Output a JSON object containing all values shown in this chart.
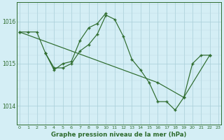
{
  "title": "Graphe pression niveau de la mer (hPa)",
  "bg_color": "#d4eef5",
  "grid_color_major": "#a8cdd8",
  "grid_color_minor": "#bcdae3",
  "line_color": "#2d6b2d",
  "xlim": [
    -0.3,
    23.3
  ],
  "ylim": [
    1013.55,
    1016.45
  ],
  "yticks": [
    1014,
    1015,
    1016
  ],
  "xticks": [
    0,
    1,
    2,
    3,
    4,
    5,
    6,
    7,
    8,
    9,
    10,
    11,
    12,
    13,
    14,
    15,
    16,
    17,
    18,
    19,
    20,
    21,
    22,
    23
  ],
  "series": [
    {
      "x": [
        0,
        1,
        2,
        3,
        4,
        5,
        6,
        7,
        8,
        9,
        10,
        11,
        12,
        13,
        14,
        15,
        16,
        17,
        18,
        19,
        20,
        21,
        22
      ],
      "y": [
        1015.75,
        1015.75,
        1015.75,
        1015.25,
        1014.9,
        1014.9,
        1015.0,
        1015.3,
        1015.45,
        1015.7,
        1016.15,
        1016.05,
        1015.65,
        1015.1,
        1014.85,
        1014.55,
        1014.1,
        1014.1,
        1013.9,
        1014.2,
        1015.0,
        1015.2,
        1015.2
      ]
    },
    {
      "x": [
        3,
        4,
        5,
        6,
        7,
        8,
        9,
        10
      ],
      "y": [
        1015.25,
        1014.85,
        1015.0,
        1015.05,
        1015.55,
        1015.85,
        1015.95,
        1016.2
      ]
    },
    {
      "x": [
        0,
        16,
        19,
        22
      ],
      "y": [
        1015.75,
        1014.55,
        1014.2,
        1015.2
      ]
    }
  ]
}
